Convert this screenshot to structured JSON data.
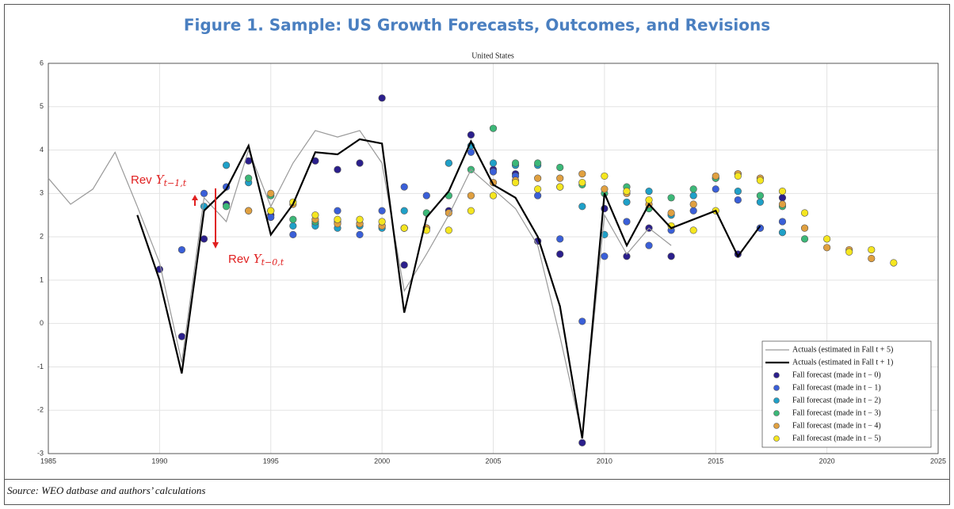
{
  "chart_data": {
    "type": "line",
    "title": "Figure 1. Sample: US Growth Forecasts, Outcomes, and Revisions",
    "subtitle": "United States",
    "xlim": [
      1985,
      2025
    ],
    "xticks": [
      1985,
      1990,
      1995,
      2000,
      2005,
      2010,
      2015,
      2020,
      2025
    ],
    "ylim": [
      -3,
      6
    ],
    "yticks": [
      -3,
      -2,
      -1,
      0,
      1,
      2,
      3,
      4,
      5,
      6
    ],
    "grid": true,
    "legend": "lower right",
    "annotations": [
      {
        "text": "Rev",
        "symbol": "Y",
        "subscript": "t−1,t",
        "color": "#e02020"
      },
      {
        "text": "Rev",
        "symbol": "Y",
        "subscript": "t−0,t",
        "color": "#e02020"
      }
    ],
    "series": [
      {
        "name": "Actuals (estimated in Fall t + 5)",
        "type": "line",
        "color": "#999999",
        "x": [
          1985,
          1986,
          1987,
          1988,
          1989,
          1990,
          1991,
          1992,
          1993,
          1994,
          1995,
          1996,
          1997,
          1998,
          1999,
          2000,
          2001,
          2002,
          2003,
          2004,
          2005,
          2006,
          2007,
          2008,
          2009,
          2010,
          2011,
          2012,
          2013
        ],
        "values": [
          3.35,
          2.75,
          3.1,
          3.95,
          2.7,
          1.4,
          -0.9,
          2.9,
          2.35,
          4.0,
          2.7,
          3.7,
          4.45,
          4.3,
          4.45,
          3.7,
          0.75,
          1.6,
          2.5,
          3.55,
          3.1,
          2.65,
          1.8,
          -0.3,
          -2.6,
          2.5,
          1.6,
          2.2,
          1.8
        ]
      },
      {
        "name": "Actuals (estimated in Fall t + 1)",
        "type": "line",
        "color": "#000000",
        "x": [
          1989,
          1990,
          1991,
          1992,
          1993,
          1994,
          1995,
          1996,
          1997,
          1998,
          1999,
          2000,
          2001,
          2002,
          2003,
          2004,
          2005,
          2006,
          2007,
          2008,
          2009,
          2010,
          2011,
          2012,
          2013,
          2014,
          2015,
          2016,
          2017
        ],
        "values": [
          2.5,
          1.0,
          -1.15,
          2.6,
          3.1,
          4.1,
          2.05,
          2.75,
          3.95,
          3.9,
          4.25,
          4.15,
          0.25,
          2.45,
          3.05,
          4.2,
          3.2,
          2.9,
          2.0,
          0.4,
          -2.65,
          3.0,
          1.8,
          2.75,
          2.2,
          2.4,
          2.6,
          1.55,
          2.25
        ]
      },
      {
        "name": "Fall forecast (made in t − 0)",
        "type": "scatter",
        "color": "#2b1f8c",
        "x": [
          1990,
          1991,
          1992,
          1993,
          1994,
          1995,
          1997,
          1998,
          1999,
          2000,
          2001,
          2002,
          2003,
          2004,
          2005,
          2006,
          2007,
          2008,
          2009,
          2010,
          2011,
          2012,
          2013,
          2016,
          2017,
          2018
        ],
        "values": [
          1.25,
          -0.3,
          1.95,
          2.75,
          3.75,
          2.5,
          3.75,
          3.55,
          3.7,
          5.2,
          1.35,
          2.2,
          2.6,
          4.35,
          3.55,
          3.45,
          1.9,
          1.6,
          -2.75,
          2.65,
          1.55,
          2.2,
          1.55,
          1.6,
          2.2,
          2.9
        ]
      },
      {
        "name": "Fall forecast (made in t − 1)",
        "type": "scatter",
        "color": "#3a5fd8",
        "x": [
          1991,
          1992,
          1993,
          1994,
          1995,
          1996,
          1997,
          1998,
          1999,
          2000,
          2001,
          2002,
          2003,
          2004,
          2005,
          2006,
          2007,
          2008,
          2009,
          2010,
          2011,
          2012,
          2013,
          2014,
          2015,
          2016,
          2017,
          2018
        ],
        "values": [
          1.7,
          3.0,
          3.15,
          2.6,
          2.45,
          2.05,
          2.3,
          2.6,
          2.05,
          2.6,
          3.15,
          2.95,
          3.7,
          3.95,
          3.5,
          3.4,
          2.95,
          1.95,
          0.05,
          1.55,
          2.35,
          1.8,
          2.15,
          2.6,
          3.1,
          2.85,
          2.2,
          2.35
        ]
      },
      {
        "name": "Fall forecast (made in t − 2)",
        "type": "scatter",
        "color": "#1fa0c8",
        "x": [
          1992,
          1993,
          1994,
          1995,
          1996,
          1997,
          1998,
          1999,
          2000,
          2001,
          2002,
          2003,
          2004,
          2005,
          2006,
          2007,
          2008,
          2009,
          2010,
          2011,
          2012,
          2013,
          2014,
          2015,
          2016,
          2017,
          2018
        ],
        "values": [
          2.7,
          3.65,
          3.25,
          2.6,
          2.25,
          2.25,
          2.2,
          2.25,
          2.2,
          2.6,
          2.2,
          3.7,
          4.1,
          3.7,
          3.65,
          3.65,
          3.15,
          2.7,
          2.05,
          2.8,
          3.05,
          2.5,
          2.95,
          3.35,
          3.05,
          2.8,
          2.1
        ]
      },
      {
        "name": "Fall forecast (made in t − 3)",
        "type": "scatter",
        "color": "#3cb878",
        "x": [
          1993,
          1994,
          1995,
          1996,
          1997,
          1998,
          1999,
          2000,
          2001,
          2002,
          2003,
          2004,
          2005,
          2006,
          2007,
          2008,
          2009,
          2010,
          2011,
          2012,
          2013,
          2014,
          2015,
          2016,
          2017,
          2018,
          2019
        ],
        "values": [
          2.7,
          3.35,
          2.95,
          2.4,
          2.35,
          2.35,
          2.3,
          2.25,
          2.2,
          2.55,
          2.95,
          3.55,
          4.5,
          3.7,
          3.7,
          3.6,
          3.2,
          3.0,
          3.15,
          2.65,
          2.9,
          3.1,
          3.35,
          3.45,
          2.95,
          2.7,
          1.95
        ]
      },
      {
        "name": "Fall forecast (made in t − 4)",
        "type": "scatter",
        "color": "#e0a040",
        "x": [
          1994,
          1995,
          1996,
          1997,
          1998,
          1999,
          2000,
          2001,
          2002,
          2003,
          2004,
          2005,
          2006,
          2007,
          2008,
          2009,
          2010,
          2011,
          2012,
          2013,
          2014,
          2015,
          2016,
          2017,
          2018,
          2019,
          2020,
          2021,
          2022
        ],
        "values": [
          2.6,
          3.0,
          2.75,
          2.4,
          2.3,
          2.3,
          2.25,
          2.2,
          2.2,
          2.55,
          2.95,
          3.25,
          3.3,
          3.35,
          3.35,
          3.45,
          3.1,
          3.0,
          2.75,
          2.55,
          2.75,
          3.4,
          3.45,
          3.35,
          2.75,
          2.2,
          1.75,
          1.7,
          1.5
        ]
      },
      {
        "name": "Fall forecast (made in t − 5)",
        "type": "scatter",
        "color": "#f5e620",
        "x": [
          1995,
          1996,
          1997,
          1998,
          1999,
          2000,
          2001,
          2002,
          2003,
          2004,
          2005,
          2006,
          2007,
          2008,
          2009,
          2010,
          2011,
          2012,
          2013,
          2014,
          2015,
          2016,
          2017,
          2018,
          2019,
          2020,
          2021,
          2022,
          2023
        ],
        "values": [
          2.6,
          2.8,
          2.5,
          2.4,
          2.4,
          2.35,
          2.2,
          2.15,
          2.15,
          2.6,
          2.95,
          3.25,
          3.1,
          3.15,
          3.25,
          3.4,
          3.05,
          2.85,
          2.25,
          2.15,
          2.6,
          3.4,
          3.3,
          3.05,
          2.55,
          1.95,
          1.65,
          1.7,
          1.4
        ]
      }
    ]
  },
  "source": "Source: WEO datbase and authors’ calculations"
}
